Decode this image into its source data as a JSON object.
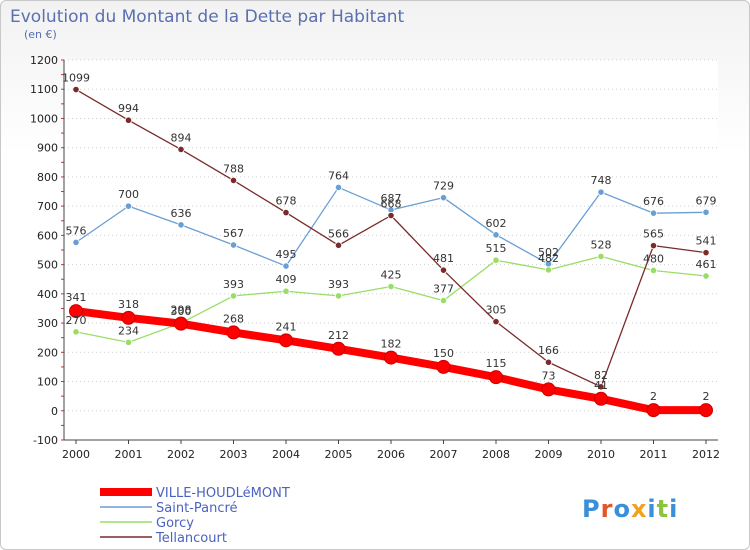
{
  "chart_data": {
    "type": "line",
    "title": "Evolution du Montant de la Dette par Habitant",
    "subtitle": "(en €)",
    "xlabel": "",
    "ylabel": "",
    "x": [
      "2000",
      "2001",
      "2002",
      "2003",
      "2004",
      "2005",
      "2006",
      "2007",
      "2008",
      "2009",
      "2010",
      "2011",
      "2012"
    ],
    "ylim": [
      -100,
      1200
    ],
    "yticks": [
      -100,
      0,
      100,
      200,
      300,
      400,
      500,
      600,
      700,
      800,
      900,
      1000,
      1100,
      1200
    ],
    "grid": "horizontal dotted",
    "legend_position": "bottom-left",
    "series": [
      {
        "name": "VILLE-HOUDLéMONT",
        "color": "#ff0000",
        "values": [
          341,
          318,
          298,
          268,
          241,
          212,
          182,
          150,
          115,
          73,
          41,
          2,
          2
        ]
      },
      {
        "name": "Saint-Pancré",
        "color": "#6a9fd4",
        "values": [
          576,
          700,
          636,
          567,
          495,
          764,
          687,
          729,
          602,
          502,
          748,
          676,
          679
        ]
      },
      {
        "name": "Gorcy",
        "color": "#99dd66",
        "values": [
          270,
          234,
          300,
          393,
          409,
          393,
          425,
          377,
          515,
          482,
          528,
          480,
          461
        ]
      },
      {
        "name": "Tellancourt",
        "color": "#7a2a2a",
        "values": [
          1099,
          994,
          894,
          788,
          678,
          566,
          668,
          481,
          305,
          166,
          82,
          565,
          541
        ]
      }
    ]
  },
  "branding": {
    "logo_text": "Proxiti"
  }
}
